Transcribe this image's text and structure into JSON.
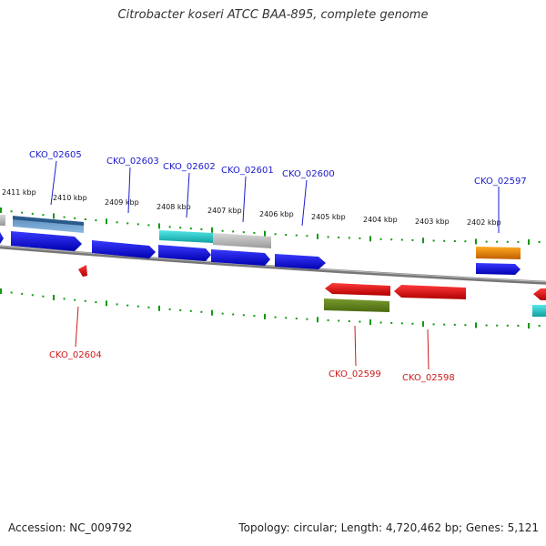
{
  "title": "Citrobacter koseri ATCC BAA-895, complete genome",
  "footer": {
    "accession": "Accession: NC_009792",
    "topology": "Topology: circular; Length: 4,720,462 bp; Genes: 5,121"
  },
  "scale_labels": [
    "2411 kbp",
    "2410 kbp",
    "2409 kbp",
    "2408 kbp",
    "2407 kbp",
    "2406 kbp",
    "2405 kbp",
    "2404 kbp",
    "2403 kbp",
    "2402 kbp"
  ],
  "gene_labels_forward": [
    "CKO_02605",
    "CKO_02603",
    "CKO_02602",
    "CKO_02601",
    "CKO_02600",
    "CKO_02597"
  ],
  "gene_labels_reverse": [
    "CKO_02604",
    "CKO_02599",
    "CKO_02598"
  ],
  "colors": {
    "forward_label": "#1a1acc",
    "reverse_label": "#cc1a1a",
    "forward_gene": "#1010e0",
    "reverse_gene": "#e01010",
    "tick": "#119911",
    "backbone": "#888888",
    "cyan_feature": "#22cccc",
    "gray_feature": "#bbbbbb",
    "steelblue_feature": "#4a7aaa",
    "orange_feature": "#ee8800",
    "olive_feature": "#5a7a20"
  }
}
